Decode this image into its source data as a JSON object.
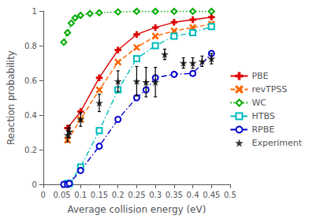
{
  "chart_data": {
    "type": "line",
    "xlabel": "Average collision energy (eV)",
    "ylabel": "Reaction probability",
    "xlim": [
      0,
      0.5
    ],
    "ylim": [
      0,
      1.0
    ],
    "xticks": [
      0,
      0.05,
      0.1,
      0.15,
      0.2,
      0.25,
      0.3,
      0.35,
      0.4,
      0.45,
      0.5
    ],
    "yticks": [
      0,
      0.2,
      0.4,
      0.6,
      0.8,
      1
    ],
    "grid": false,
    "legend": "right",
    "series": [
      {
        "name": "PBE",
        "color": "#dd0000",
        "marker": "plus",
        "line_style": "solid",
        "x": [
          0.065,
          0.1,
          0.15,
          0.2,
          0.25,
          0.3,
          0.35,
          0.4,
          0.45
        ],
        "values": [
          0.325,
          0.42,
          0.615,
          0.775,
          0.865,
          0.905,
          0.935,
          0.95,
          0.965
        ]
      },
      {
        "name": "revTPSS",
        "color": "#ff6600",
        "marker": "cross",
        "line_style": "dashed",
        "x": [
          0.065,
          0.1,
          0.15,
          0.2,
          0.25,
          0.3,
          0.35,
          0.4,
          0.45
        ],
        "values": [
          0.255,
          0.375,
          0.545,
          0.705,
          0.79,
          0.855,
          0.885,
          0.905,
          0.925
        ]
      },
      {
        "name": "WC",
        "color": "#00aa00",
        "marker": "diamond",
        "line_style": "dotted",
        "x": [
          0.055,
          0.065,
          0.075,
          0.085,
          0.1,
          0.125,
          0.15,
          0.2,
          0.25,
          0.3,
          0.35,
          0.4,
          0.45
        ],
        "values": [
          0.82,
          0.875,
          0.93,
          0.96,
          0.975,
          0.985,
          0.99,
          0.995,
          0.998,
          0.998,
          0.998,
          0.998,
          0.998
        ]
      },
      {
        "name": "HTBS",
        "color": "#00bbbb",
        "marker": "square",
        "line_style": "dashdot",
        "x": [
          0.065,
          0.07,
          0.1,
          0.15,
          0.2,
          0.25,
          0.3,
          0.35,
          0.4,
          0.45
        ],
        "values": [
          0.005,
          0.005,
          0.1,
          0.31,
          0.545,
          0.725,
          0.8,
          0.855,
          0.875,
          0.91
        ]
      },
      {
        "name": "RPBE",
        "color": "#0000cc",
        "marker": "circle",
        "line_style": "dashdot",
        "x": [
          0.055,
          0.065,
          0.07,
          0.1,
          0.15,
          0.2,
          0.25,
          0.275,
          0.3,
          0.35,
          0.4,
          0.45
        ],
        "values": [
          0.0,
          0.0,
          0.005,
          0.08,
          0.22,
          0.375,
          0.5,
          0.545,
          0.615,
          0.635,
          0.64,
          0.755
        ]
      },
      {
        "name": "Experiment",
        "type": "scatter",
        "color": "#000000",
        "marker": "star",
        "x": [
          0.065,
          0.07,
          0.1,
          0.15,
          0.2,
          0.25,
          0.275,
          0.3,
          0.325,
          0.375,
          0.4,
          0.425,
          0.45
        ],
        "values": [
          0.285,
          0.305,
          0.375,
          0.47,
          0.595,
          0.595,
          0.59,
          0.59,
          0.75,
          0.7,
          0.7,
          0.71,
          0.725
        ],
        "yerr": [
          0.04,
          0.035,
          0.04,
          0.05,
          0.06,
          0.085,
          0.085,
          0.085,
          0.03,
          0.03,
          0.03,
          0.03,
          0.03
        ]
      }
    ]
  }
}
